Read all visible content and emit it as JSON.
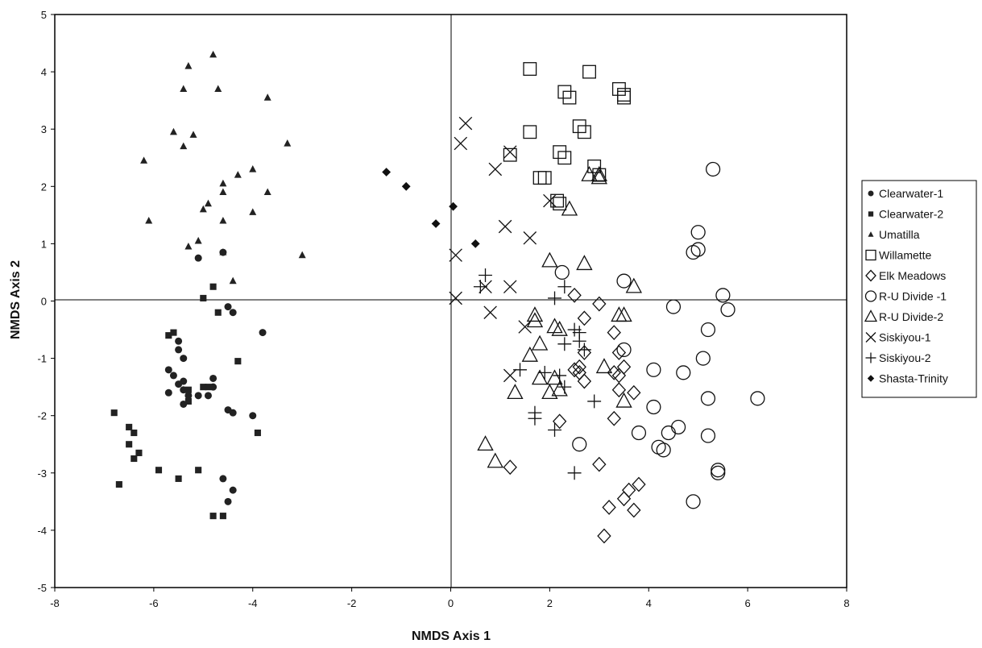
{
  "chart_data": {
    "type": "scatter",
    "title": "",
    "xlabel": "NMDS Axis 1",
    "ylabel": "NMDS Axis 2",
    "xlim": [
      -8,
      8
    ],
    "ylim": [
      -5,
      5
    ],
    "xticks": [
      -8,
      -6,
      -4,
      -2,
      0,
      2,
      4,
      6,
      8
    ],
    "yticks": [
      5,
      4,
      3,
      2,
      1,
      0,
      -1,
      -2,
      -3,
      -4,
      -5
    ],
    "grid": false,
    "legend_position": "right",
    "series": [
      {
        "name": "Clearwater-1",
        "marker": "circle-filled",
        "points": [
          [
            -5.1,
            0.75
          ],
          [
            -4.6,
            0.85
          ],
          [
            -4.5,
            -0.1
          ],
          [
            -4.4,
            -0.2
          ],
          [
            -3.8,
            -0.55
          ],
          [
            -5.5,
            -0.7
          ],
          [
            -5.5,
            -0.85
          ],
          [
            -5.4,
            -1.0
          ],
          [
            -5.7,
            -1.2
          ],
          [
            -5.6,
            -1.3
          ],
          [
            -5.4,
            -1.4
          ],
          [
            -5.5,
            -1.45
          ],
          [
            -5.4,
            -1.55
          ],
          [
            -5.7,
            -1.6
          ],
          [
            -5.3,
            -1.65
          ],
          [
            -5.4,
            -1.8
          ],
          [
            -5.1,
            -1.65
          ],
          [
            -4.9,
            -1.65
          ],
          [
            -4.8,
            -1.35
          ],
          [
            -4.8,
            -1.5
          ],
          [
            -4.5,
            -1.9
          ],
          [
            -4.4,
            -1.95
          ],
          [
            -4.0,
            -2.0
          ],
          [
            -4.6,
            -3.1
          ],
          [
            -4.4,
            -3.3
          ],
          [
            -4.5,
            -3.5
          ]
        ]
      },
      {
        "name": "Clearwater-2",
        "marker": "square-filled",
        "points": [
          [
            -5.0,
            0.05
          ],
          [
            -4.8,
            0.25
          ],
          [
            -4.7,
            -0.2
          ],
          [
            -4.3,
            -1.05
          ],
          [
            -3.9,
            -2.3
          ],
          [
            -5.6,
            -0.55
          ],
          [
            -5.7,
            -0.6
          ],
          [
            -5.3,
            -1.55
          ],
          [
            -4.9,
            -1.5
          ],
          [
            -5.0,
            -1.5
          ],
          [
            -5.3,
            -1.75
          ],
          [
            -6.8,
            -1.95
          ],
          [
            -6.5,
            -2.2
          ],
          [
            -6.4,
            -2.3
          ],
          [
            -6.5,
            -2.5
          ],
          [
            -6.3,
            -2.65
          ],
          [
            -6.4,
            -2.75
          ],
          [
            -5.9,
            -2.95
          ],
          [
            -5.1,
            -2.95
          ],
          [
            -5.5,
            -3.1
          ],
          [
            -6.7,
            -3.2
          ],
          [
            -4.8,
            -3.75
          ],
          [
            -4.6,
            -3.75
          ]
        ]
      },
      {
        "name": "Umatilla",
        "marker": "triangle-filled",
        "points": [
          [
            -4.8,
            4.3
          ],
          [
            -5.3,
            4.1
          ],
          [
            -5.4,
            3.7
          ],
          [
            -4.7,
            3.7
          ],
          [
            -3.7,
            3.55
          ],
          [
            -5.6,
            2.95
          ],
          [
            -5.2,
            2.9
          ],
          [
            -5.4,
            2.7
          ],
          [
            -3.3,
            2.75
          ],
          [
            -6.2,
            2.45
          ],
          [
            -4.0,
            2.3
          ],
          [
            -4.3,
            2.2
          ],
          [
            -4.6,
            2.05
          ],
          [
            -3.7,
            1.9
          ],
          [
            -4.6,
            1.9
          ],
          [
            -4.9,
            1.7
          ],
          [
            -5.0,
            1.6
          ],
          [
            -4.6,
            1.4
          ],
          [
            -6.1,
            1.4
          ],
          [
            -4.0,
            1.55
          ],
          [
            -5.1,
            1.05
          ],
          [
            -5.3,
            0.95
          ],
          [
            -4.6,
            0.85
          ],
          [
            -3.0,
            0.8
          ],
          [
            -4.4,
            0.35
          ]
        ]
      },
      {
        "name": "Willamette",
        "marker": "square-open",
        "points": [
          [
            1.6,
            4.05
          ],
          [
            2.8,
            4.0
          ],
          [
            2.3,
            3.65
          ],
          [
            2.4,
            3.55
          ],
          [
            3.4,
            3.7
          ],
          [
            3.5,
            3.6
          ],
          [
            3.5,
            3.55
          ],
          [
            2.6,
            3.05
          ],
          [
            2.7,
            2.95
          ],
          [
            1.6,
            2.95
          ],
          [
            2.2,
            2.6
          ],
          [
            2.3,
            2.5
          ],
          [
            1.2,
            2.55
          ],
          [
            2.9,
            2.35
          ],
          [
            3.0,
            2.2
          ],
          [
            1.8,
            2.15
          ],
          [
            1.9,
            2.15
          ],
          [
            2.15,
            1.75
          ],
          [
            2.2,
            1.7
          ]
        ]
      },
      {
        "name": "Elk Meadows",
        "marker": "diamond-open",
        "points": [
          [
            3.0,
            -0.05
          ],
          [
            2.5,
            0.1
          ],
          [
            2.7,
            -0.3
          ],
          [
            3.3,
            -0.55
          ],
          [
            2.7,
            -0.9
          ],
          [
            3.4,
            -0.9
          ],
          [
            3.5,
            -1.15
          ],
          [
            3.3,
            -1.25
          ],
          [
            3.4,
            -1.3
          ],
          [
            2.5,
            -1.2
          ],
          [
            2.6,
            -1.25
          ],
          [
            2.6,
            -1.15
          ],
          [
            2.7,
            -1.4
          ],
          [
            3.4,
            -1.55
          ],
          [
            3.7,
            -1.6
          ],
          [
            3.3,
            -2.05
          ],
          [
            2.2,
            -2.1
          ],
          [
            3.0,
            -2.85
          ],
          [
            1.2,
            -2.9
          ],
          [
            3.8,
            -3.2
          ],
          [
            3.6,
            -3.3
          ],
          [
            3.5,
            -3.45
          ],
          [
            3.2,
            -3.6
          ],
          [
            3.7,
            -3.65
          ],
          [
            3.1,
            -4.1
          ]
        ]
      },
      {
        "name": "R-U Divide -1",
        "marker": "circle-open",
        "points": [
          [
            5.3,
            2.3
          ],
          [
            5.0,
            1.2
          ],
          [
            5.0,
            0.9
          ],
          [
            4.9,
            0.85
          ],
          [
            2.25,
            0.5
          ],
          [
            3.5,
            0.35
          ],
          [
            5.5,
            0.1
          ],
          [
            5.6,
            -0.15
          ],
          [
            4.5,
            -0.1
          ],
          [
            5.2,
            -0.5
          ],
          [
            3.5,
            -0.85
          ],
          [
            5.1,
            -1.0
          ],
          [
            4.1,
            -1.2
          ],
          [
            4.7,
            -1.25
          ],
          [
            5.2,
            -1.7
          ],
          [
            6.2,
            -1.7
          ],
          [
            4.1,
            -1.85
          ],
          [
            4.6,
            -2.2
          ],
          [
            3.8,
            -2.3
          ],
          [
            4.4,
            -2.3
          ],
          [
            5.2,
            -2.35
          ],
          [
            2.6,
            -2.5
          ],
          [
            4.2,
            -2.55
          ],
          [
            4.3,
            -2.6
          ],
          [
            5.4,
            -2.95
          ],
          [
            5.4,
            -3.0
          ],
          [
            4.9,
            -3.5
          ]
        ]
      },
      {
        "name": "R-U Divide-2",
        "marker": "triangle-open",
        "points": [
          [
            2.8,
            2.2
          ],
          [
            3.0,
            2.2
          ],
          [
            3.0,
            2.15
          ],
          [
            2.4,
            1.6
          ],
          [
            2.0,
            0.7
          ],
          [
            2.7,
            0.65
          ],
          [
            3.7,
            0.25
          ],
          [
            3.4,
            -0.25
          ],
          [
            3.5,
            -0.25
          ],
          [
            1.7,
            -0.25
          ],
          [
            1.7,
            -0.35
          ],
          [
            2.1,
            -0.45
          ],
          [
            2.2,
            -0.5
          ],
          [
            1.8,
            -0.75
          ],
          [
            1.6,
            -0.95
          ],
          [
            3.1,
            -1.15
          ],
          [
            2.1,
            -1.35
          ],
          [
            1.8,
            -1.35
          ],
          [
            2.2,
            -1.55
          ],
          [
            2.0,
            -1.6
          ],
          [
            1.3,
            -1.6
          ],
          [
            3.5,
            -1.75
          ],
          [
            0.7,
            -2.5
          ],
          [
            0.9,
            -2.8
          ]
        ]
      },
      {
        "name": "Siskiyou-1",
        "marker": "x",
        "points": [
          [
            0.3,
            3.1
          ],
          [
            0.2,
            2.75
          ],
          [
            1.2,
            2.6
          ],
          [
            0.9,
            2.3
          ],
          [
            2.0,
            1.75
          ],
          [
            1.1,
            1.3
          ],
          [
            1.6,
            1.1
          ],
          [
            0.1,
            0.8
          ],
          [
            0.7,
            0.25
          ],
          [
            1.2,
            0.25
          ],
          [
            0.1,
            0.05
          ],
          [
            0.8,
            -0.2
          ],
          [
            1.5,
            -0.45
          ],
          [
            1.2,
            -1.3
          ]
        ]
      },
      {
        "name": "Siskiyou-2",
        "marker": "plus",
        "points": [
          [
            0.7,
            0.45
          ],
          [
            0.6,
            0.25
          ],
          [
            2.3,
            0.25
          ],
          [
            2.1,
            0.05
          ],
          [
            2.5,
            -0.5
          ],
          [
            2.6,
            -0.55
          ],
          [
            2.6,
            -0.7
          ],
          [
            2.3,
            -0.75
          ],
          [
            2.7,
            -0.85
          ],
          [
            1.4,
            -1.2
          ],
          [
            1.9,
            -1.25
          ],
          [
            2.2,
            -1.3
          ],
          [
            2.3,
            -1.5
          ],
          [
            1.7,
            -1.95
          ],
          [
            1.7,
            -2.05
          ],
          [
            2.1,
            -2.25
          ],
          [
            2.9,
            -1.75
          ],
          [
            2.5,
            -3.0
          ]
        ]
      },
      {
        "name": "Shasta-Trinity",
        "marker": "diamond-filled",
        "points": [
          [
            -1.3,
            2.25
          ],
          [
            -0.9,
            2.0
          ],
          [
            0.05,
            1.65
          ],
          [
            -0.3,
            1.35
          ],
          [
            0.5,
            1.0
          ]
        ]
      }
    ]
  }
}
